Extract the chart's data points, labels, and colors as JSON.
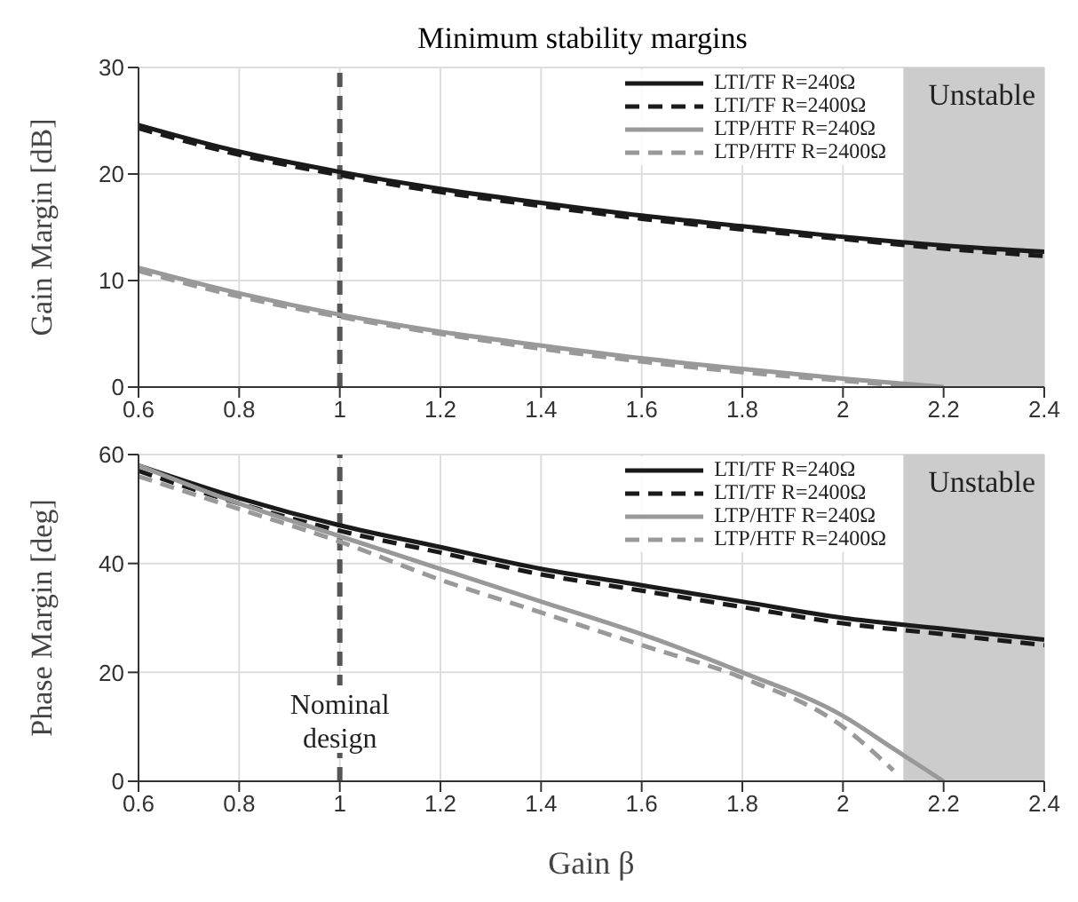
{
  "chart_data": [
    {
      "type": "line",
      "title": "Minimum stability margins",
      "ylabel": "Gain Margin [dB]",
      "xlim": [
        0.6,
        2.4
      ],
      "xticks": [
        0.6,
        0.8,
        1,
        1.2,
        1.4,
        1.6,
        1.8,
        2,
        2.2,
        2.4
      ],
      "ylim": [
        0,
        30
      ],
      "yticks": [
        0,
        10,
        20,
        30
      ],
      "grid": true,
      "legend": "top right",
      "series": [
        {
          "name": "LTI/TF R=240Ω",
          "color": "#1a1a1a",
          "line_style": "solid",
          "x": [
            0.6,
            0.8,
            1,
            1.2,
            1.4,
            1.6,
            1.8,
            2,
            2.2,
            2.4
          ],
          "values": [
            24.6,
            22.1,
            20.2,
            18.6,
            17.3,
            16.1,
            15.1,
            14.1,
            13.3,
            12.7
          ]
        },
        {
          "name": "LTI/TF R=2400Ω",
          "color": "#1a1a1a",
          "line_style": "dashed",
          "x": [
            0.6,
            0.8,
            1,
            1.2,
            1.4,
            1.6,
            1.8,
            2,
            2.2,
            2.4
          ],
          "values": [
            24.3,
            21.8,
            19.9,
            18.3,
            17.0,
            15.8,
            14.8,
            13.9,
            13.0,
            12.3
          ]
        },
        {
          "name": "LTP/HTF R=240Ω",
          "color": "#999999",
          "line_style": "solid",
          "x": [
            0.6,
            0.8,
            1,
            1.2,
            1.4,
            1.6,
            1.8,
            2,
            2.2
          ],
          "values": [
            11.2,
            8.8,
            6.8,
            5.2,
            3.9,
            2.7,
            1.7,
            0.8,
            0
          ]
        },
        {
          "name": "LTP/HTF R=2400Ω",
          "color": "#999999",
          "line_style": "dashed",
          "x": [
            0.6,
            0.8,
            1,
            1.2,
            1.4,
            1.6,
            1.8,
            2,
            2.15
          ],
          "values": [
            10.9,
            8.5,
            6.6,
            5.0,
            3.6,
            2.4,
            1.4,
            0.6,
            0
          ]
        }
      ],
      "ref_lines": [
        {
          "axis": "x",
          "value": 1,
          "label": null,
          "color": "#555555",
          "line_style": "dashed"
        }
      ],
      "bands": [
        {
          "axis": "x",
          "from": 2.12,
          "to": 2.4,
          "label": "Unstable",
          "color": "#cccccc"
        }
      ]
    },
    {
      "type": "line",
      "xlabel": "Gain β",
      "ylabel": "Phase Margin [deg]",
      "xlim": [
        0.6,
        2.4
      ],
      "xticks": [
        0.6,
        0.8,
        1,
        1.2,
        1.4,
        1.6,
        1.8,
        2,
        2.2,
        2.4
      ],
      "ylim": [
        0,
        60
      ],
      "yticks": [
        0,
        20,
        40,
        60
      ],
      "grid": true,
      "legend": "top right",
      "series": [
        {
          "name": "LTI/TF R=240Ω",
          "color": "#1a1a1a",
          "line_style": "solid",
          "x": [
            0.6,
            0.8,
            1,
            1.2,
            1.4,
            1.6,
            1.8,
            2,
            2.2,
            2.4
          ],
          "values": [
            58,
            52,
            47,
            43,
            39,
            36,
            33,
            30,
            28,
            26
          ]
        },
        {
          "name": "LTI/TF R=2400Ω",
          "color": "#1a1a1a",
          "line_style": "dashed",
          "x": [
            0.6,
            0.8,
            1,
            1.2,
            1.4,
            1.6,
            1.8,
            2,
            2.2,
            2.4
          ],
          "values": [
            57,
            51,
            46,
            42,
            38,
            35,
            32,
            29,
            27,
            25
          ]
        },
        {
          "name": "LTP/HTF R=240Ω",
          "color": "#999999",
          "line_style": "solid",
          "x": [
            0.6,
            0.8,
            1,
            1.2,
            1.4,
            1.6,
            1.8,
            2,
            2.1,
            2.2
          ],
          "values": [
            58,
            51,
            45,
            39,
            33,
            27,
            20,
            12,
            6,
            0
          ]
        },
        {
          "name": "LTP/HTF R=2400Ω",
          "color": "#999999",
          "line_style": "dashed",
          "x": [
            0.6,
            0.8,
            1,
            1.2,
            1.4,
            1.6,
            1.8,
            2,
            2.1
          ],
          "values": [
            56,
            50,
            44,
            37,
            31,
            25,
            19,
            10,
            2
          ]
        }
      ],
      "ref_lines": [
        {
          "axis": "x",
          "value": 1,
          "label": "Nominal design",
          "color": "#555555",
          "line_style": "dashed"
        }
      ],
      "bands": [
        {
          "axis": "x",
          "from": 2.12,
          "to": 2.4,
          "label": "Unstable",
          "color": "#cccccc"
        }
      ]
    }
  ]
}
